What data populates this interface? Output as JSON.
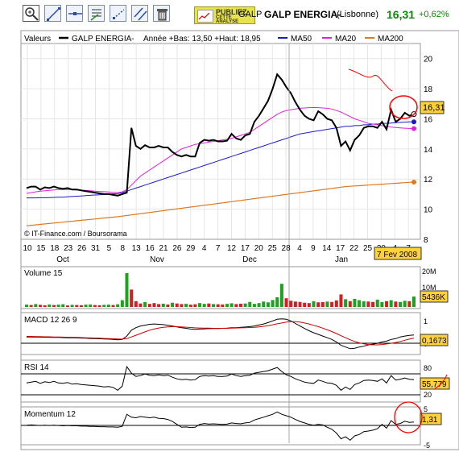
{
  "header": {
    "ticker": "GALP",
    "name": "GALP ENERGIA-",
    "market": "(Lisbonne)",
    "price": "16,31",
    "change": "+0,62%",
    "ad_line1": "PUBLIEZ",
    "ad_line2": "CETTE",
    "ad_line3": "ANALYSE"
  },
  "toolbar": {
    "icons": [
      "zoom-icon",
      "trendline-icon",
      "horizontal-line-icon",
      "annotation-icon",
      "fibonacci-icon",
      "parallel-line-icon",
      "trash-icon"
    ]
  },
  "colors": {
    "price": "#000000",
    "ma50": "#1a1acc",
    "ma20": "#e020d8",
    "ma200": "#e07820",
    "volume_up": "#20a020",
    "volume_down": "#d02020",
    "panel_border": "#999999",
    "grid": "#e6e6e6",
    "value_box": "#ffd23c",
    "annotation": "#ff0000",
    "accent_green": "#0a8a0a"
  },
  "legend": {
    "values_label": "Valeurs",
    "series_label": "GALP ENERGIA-",
    "year_range": "Année +Bas: 13,50 +Haut: 18,95",
    "ma50": "MA50",
    "ma20": "MA20",
    "ma200": "MA200",
    "copyright": "© IT-Finance.com / Boursorama"
  },
  "x_axis": {
    "days": [
      "10",
      "15",
      "18",
      "23",
      "26",
      "31",
      "5",
      "8",
      "13",
      "16",
      "21",
      "26",
      "29",
      "4",
      "7",
      "12",
      "17",
      "20",
      "25",
      "28",
      "4",
      "9",
      "14",
      "17",
      "22",
      "25",
      "30",
      "4",
      "7"
    ],
    "months": [
      "Oct",
      "Nov",
      "Dec",
      "Jan"
    ],
    "date_tag": "7 Fev 2008"
  },
  "panels": {
    "volume": {
      "label": "Volume 15",
      "value_tag": "5436K",
      "ticks": [
        "20M",
        "10M"
      ]
    },
    "macd": {
      "label": "MACD 12 26 9",
      "value_tag": "0,1673",
      "ticks": [
        "1",
        "0"
      ]
    },
    "rsi": {
      "label": "RSI 14",
      "value_tag": "55,779",
      "ticks": [
        "80",
        "20"
      ]
    },
    "momentum": {
      "label": "Momentum 12",
      "value_tag": "1,31",
      "ticks": [
        "5",
        "-5"
      ]
    }
  },
  "chart_data": {
    "type": "line",
    "ylim": [
      8,
      21
    ],
    "yticks": [
      8,
      10,
      12,
      14,
      16,
      18,
      20
    ],
    "last_price_tag": "16,31",
    "n": 86,
    "price": [
      11.4,
      11.5,
      11.5,
      11.3,
      11.45,
      11.4,
      11.5,
      11.4,
      11.35,
      11.4,
      11.3,
      11.3,
      11.25,
      11.2,
      11.15,
      11.1,
      11.05,
      11.0,
      11.0,
      10.95,
      10.9,
      11.0,
      11.1,
      15.4,
      14.2,
      14.0,
      14.25,
      14.1,
      14.1,
      14.2,
      14.1,
      14.1,
      13.8,
      13.6,
      13.5,
      13.6,
      13.5,
      13.5,
      14.4,
      14.6,
      14.55,
      14.6,
      14.5,
      14.5,
      14.55,
      15.0,
      14.7,
      14.6,
      14.9,
      15.0,
      15.8,
      16.2,
      16.7,
      17.2,
      18.0,
      18.95,
      18.6,
      18.1,
      17.7,
      17.1,
      16.6,
      16.2,
      16.0,
      15.9,
      16.5,
      16.3,
      16.0,
      15.9,
      15.4,
      14.2,
      14.5,
      13.9,
      14.6,
      14.9,
      15.4,
      15.5,
      15.5,
      15.4,
      15.8,
      15.3,
      16.6,
      15.8,
      16.0,
      16.4,
      16.2,
      16.31
    ],
    "ma50": [
      10.75,
      10.75,
      10.75,
      10.76,
      10.76,
      10.77,
      10.78,
      10.8,
      10.8,
      10.82,
      10.84,
      10.86,
      10.88,
      10.9,
      10.92,
      10.94,
      10.96,
      10.98,
      11.0,
      11.02,
      11.04,
      11.1,
      11.2,
      11.3,
      11.4,
      11.5,
      11.6,
      11.7,
      11.8,
      11.9,
      12.0,
      12.1,
      12.2,
      12.3,
      12.4,
      12.5,
      12.6,
      12.7,
      12.8,
      12.9,
      13.0,
      13.1,
      13.2,
      13.3,
      13.4,
      13.5,
      13.6,
      13.7,
      13.8,
      13.9,
      14.0,
      14.1,
      14.2,
      14.3,
      14.4,
      14.5,
      14.6,
      14.7,
      14.8,
      14.9,
      15.0,
      15.05,
      15.1,
      15.15,
      15.2,
      15.25,
      15.3,
      15.35,
      15.4,
      15.45,
      15.5,
      15.5,
      15.55,
      15.55,
      15.6,
      15.6,
      15.65,
      15.65,
      15.7,
      15.7,
      15.72,
      15.74,
      15.76,
      15.78,
      15.8,
      15.8
    ],
    "ma20": [
      11.05,
      11.1,
      11.15,
      11.2,
      11.22,
      11.25,
      11.28,
      11.3,
      11.3,
      11.3,
      11.3,
      11.28,
      11.26,
      11.24,
      11.22,
      11.2,
      11.18,
      11.16,
      11.14,
      11.12,
      11.1,
      11.15,
      11.3,
      11.6,
      11.9,
      12.2,
      12.4,
      12.6,
      12.8,
      13.0,
      13.2,
      13.4,
      13.6,
      13.8,
      14.0,
      14.1,
      14.2,
      14.3,
      14.35,
      14.4,
      14.45,
      14.5,
      14.55,
      14.6,
      14.65,
      14.7,
      14.8,
      14.9,
      15.0,
      15.1,
      15.3,
      15.5,
      15.7,
      15.9,
      16.1,
      16.3,
      16.45,
      16.55,
      16.6,
      16.65,
      16.7,
      16.72,
      16.74,
      16.75,
      16.74,
      16.72,
      16.7,
      16.65,
      16.55,
      16.45,
      16.3,
      16.15,
      16.0,
      15.9,
      15.8,
      15.7,
      15.65,
      15.6,
      15.55,
      15.5,
      15.45,
      15.42,
      15.4,
      15.38,
      15.36,
      15.35
    ],
    "ma200": [
      8.9,
      8.93,
      8.96,
      8.99,
      9.02,
      9.05,
      9.08,
      9.11,
      9.14,
      9.17,
      9.2,
      9.23,
      9.26,
      9.29,
      9.32,
      9.35,
      9.38,
      9.41,
      9.44,
      9.47,
      9.5,
      9.54,
      9.58,
      9.62,
      9.66,
      9.7,
      9.74,
      9.78,
      9.82,
      9.86,
      9.9,
      9.94,
      9.98,
      10.02,
      10.06,
      10.1,
      10.14,
      10.18,
      10.22,
      10.26,
      10.3,
      10.34,
      10.38,
      10.42,
      10.46,
      10.5,
      10.54,
      10.58,
      10.62,
      10.66,
      10.7,
      10.74,
      10.78,
      10.82,
      10.86,
      10.9,
      10.94,
      10.98,
      11.02,
      11.06,
      11.1,
      11.14,
      11.18,
      11.22,
      11.26,
      11.3,
      11.34,
      11.38,
      11.42,
      11.46,
      11.5,
      11.52,
      11.54,
      11.56,
      11.58,
      11.6,
      11.62,
      11.64,
      11.66,
      11.68,
      11.7,
      11.72,
      11.74,
      11.76,
      11.78,
      11.8
    ],
    "volume_ylim": [
      0,
      20
    ],
    "volume": [
      1.2,
      1.0,
      1.5,
      1.1,
      0.9,
      1.3,
      1.0,
      1.2,
      1.4,
      0.8,
      1.1,
      1.0,
      0.9,
      1.2,
      1.3,
      1.0,
      0.9,
      1.1,
      1.2,
      1.0,
      1.4,
      3.5,
      17.5,
      9.0,
      3.0,
      1.8,
      2.5,
      1.6,
      2.0,
      1.5,
      1.7,
      1.3,
      2.2,
      1.8,
      1.5,
      1.6,
      1.2,
      1.4,
      2.0,
      1.6,
      1.8,
      1.5,
      1.4,
      1.3,
      1.6,
      1.9,
      1.5,
      1.7,
      1.8,
      2.6,
      1.6,
      2.0,
      2.8,
      2.4,
      3.6,
      5.0,
      12.0,
      4.5,
      3.2,
      2.8,
      2.6,
      2.2,
      2.0,
      3.0,
      2.4,
      2.5,
      2.8,
      2.6,
      3.4,
      6.5,
      4.0,
      3.0,
      4.2,
      3.5,
      3.0,
      2.8,
      2.6,
      3.8,
      2.5,
      3.0,
      3.5,
      2.8,
      2.6,
      3.2,
      3.0,
      5.4
    ],
    "volume_up": [
      1,
      0,
      1,
      0,
      0,
      1,
      0,
      1,
      1,
      0,
      1,
      0,
      0,
      1,
      1,
      0,
      0,
      1,
      1,
      0,
      1,
      1,
      1,
      0,
      0,
      0,
      1,
      0,
      0,
      0,
      1,
      0,
      1,
      0,
      0,
      1,
      0,
      0,
      1,
      1,
      0,
      1,
      0,
      0,
      1,
      1,
      0,
      0,
      1,
      1,
      1,
      1,
      1,
      1,
      1,
      1,
      1,
      0,
      0,
      0,
      0,
      0,
      0,
      1,
      0,
      0,
      1,
      0,
      0,
      0,
      1,
      0,
      1,
      1,
      1,
      0,
      0,
      1,
      1,
      0,
      1,
      0,
      1,
      1,
      0,
      1
    ],
    "macd_ylim": [
      -0.9,
      1.4
    ],
    "macd": [
      0.05,
      0.05,
      0.04,
      0.04,
      0.03,
      0.03,
      0.02,
      0.02,
      0.01,
      0.0,
      0.0,
      -0.01,
      -0.02,
      -0.03,
      -0.04,
      -0.05,
      -0.06,
      -0.07,
      -0.08,
      -0.1,
      -0.12,
      -0.1,
      0.1,
      0.45,
      0.6,
      0.7,
      0.75,
      0.8,
      0.82,
      0.8,
      0.78,
      0.74,
      0.7,
      0.65,
      0.6,
      0.56,
      0.52,
      0.5,
      0.52,
      0.53,
      0.54,
      0.55,
      0.55,
      0.56,
      0.57,
      0.6,
      0.6,
      0.62,
      0.64,
      0.66,
      0.7,
      0.76,
      0.82,
      0.9,
      1.0,
      1.1,
      1.12,
      1.1,
      1.0,
      0.85,
      0.7,
      0.55,
      0.42,
      0.3,
      0.2,
      0.1,
      0.0,
      -0.1,
      -0.25,
      -0.45,
      -0.55,
      -0.65,
      -0.62,
      -0.55,
      -0.5,
      -0.42,
      -0.38,
      -0.33,
      -0.25,
      -0.2,
      -0.1,
      -0.05,
      0.05,
      0.1,
      0.14,
      0.17
    ],
    "macd_signal": [
      0.08,
      0.08,
      0.07,
      0.07,
      0.06,
      0.06,
      0.05,
      0.05,
      0.04,
      0.03,
      0.03,
      0.02,
      0.01,
      0.0,
      -0.01,
      -0.02,
      -0.03,
      -0.04,
      -0.05,
      -0.06,
      -0.07,
      -0.08,
      -0.05,
      0.05,
      0.15,
      0.25,
      0.35,
      0.45,
      0.52,
      0.58,
      0.62,
      0.65,
      0.66,
      0.66,
      0.65,
      0.63,
      0.61,
      0.59,
      0.58,
      0.57,
      0.57,
      0.56,
      0.56,
      0.56,
      0.56,
      0.57,
      0.58,
      0.59,
      0.6,
      0.61,
      0.62,
      0.65,
      0.68,
      0.72,
      0.77,
      0.83,
      0.88,
      0.93,
      0.96,
      0.96,
      0.93,
      0.88,
      0.82,
      0.74,
      0.66,
      0.57,
      0.47,
      0.37,
      0.25,
      0.12,
      0.0,
      -0.12,
      -0.22,
      -0.3,
      -0.36,
      -0.4,
      -0.42,
      -0.42,
      -0.4,
      -0.37,
      -0.33,
      -0.28,
      -0.22,
      -0.15,
      -0.08,
      -0.02
    ],
    "rsi_ylim": [
      5,
      100
    ],
    "rsi": [
      48,
      50,
      52,
      47,
      51,
      49,
      52,
      48,
      47,
      49,
      45,
      46,
      44,
      43,
      42,
      41,
      40,
      38,
      39,
      37,
      30,
      40,
      88,
      72,
      64,
      66,
      70,
      67,
      66,
      68,
      66,
      67,
      62,
      58,
      56,
      57,
      55,
      56,
      64,
      66,
      65,
      66,
      64,
      64,
      65,
      70,
      66,
      64,
      66,
      67,
      72,
      74,
      76,
      78,
      82,
      86,
      76,
      68,
      64,
      58,
      54,
      50,
      48,
      47,
      55,
      52,
      48,
      47,
      42,
      30,
      38,
      32,
      44,
      48,
      54,
      55,
      54,
      52,
      58,
      48,
      66,
      55,
      57,
      60,
      57,
      55.8
    ],
    "momentum_ylim": [
      -6,
      6
    ],
    "momentum": [
      0.2,
      0.3,
      0.2,
      0.1,
      0.2,
      0.1,
      0.2,
      0.1,
      0.0,
      0.1,
      0.0,
      0.0,
      -0.1,
      -0.1,
      -0.2,
      -0.2,
      -0.3,
      -0.3,
      -0.4,
      -0.4,
      -0.5,
      -0.2,
      4.0,
      3.0,
      2.8,
      3.2,
      3.0,
      2.8,
      3.0,
      2.6,
      2.5,
      2.2,
      1.5,
      0.5,
      -0.5,
      -0.4,
      -0.6,
      -0.5,
      0.5,
      0.8,
      0.6,
      0.7,
      0.6,
      0.5,
      0.6,
      1.0,
      0.8,
      0.7,
      1.0,
      1.2,
      2.0,
      2.5,
      3.0,
      3.5,
      4.0,
      4.8,
      4.0,
      3.5,
      3.0,
      2.2,
      1.5,
      1.0,
      0.5,
      0.2,
      0.5,
      0.3,
      -0.5,
      -1.2,
      -2.5,
      -4.5,
      -3.8,
      -5.0,
      -3.5,
      -3.0,
      -2.0,
      -1.8,
      -1.5,
      -1.0,
      0.5,
      -0.8,
      1.8,
      0.5,
      0.8,
      1.6,
      1.2,
      1.31
    ]
  }
}
